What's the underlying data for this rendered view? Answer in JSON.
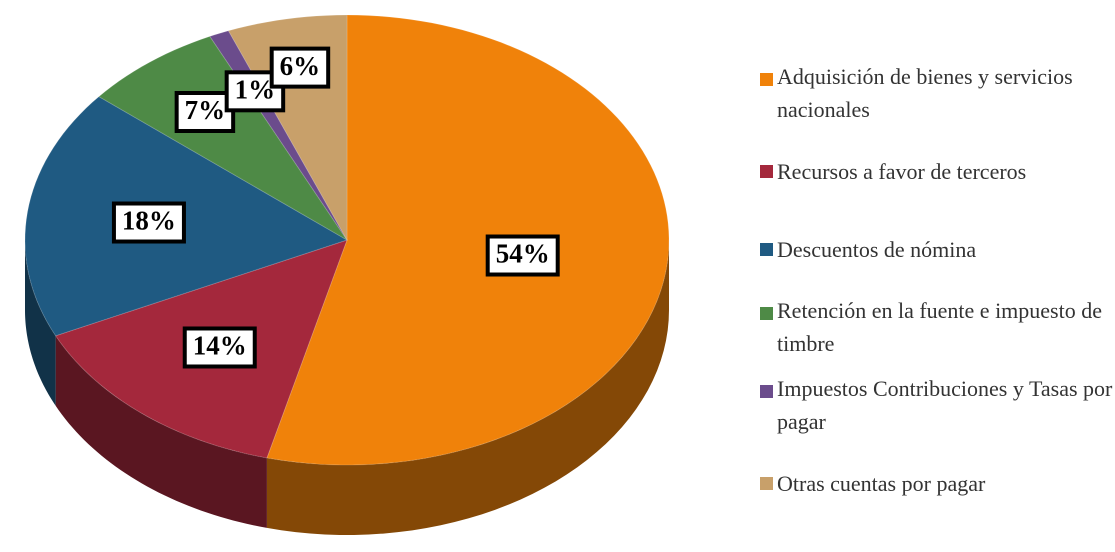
{
  "chart_data": {
    "type": "pie",
    "categories": [
      "Adquisición de bienes y servicios nacionales",
      "Recursos a favor de terceros",
      "Descuentos de nómina",
      "Retención en la fuente e impuesto de timbre",
      "Impuestos Contribuciones y Tasas por pagar",
      "Otras cuentas por pagar"
    ],
    "values": [
      54,
      14,
      18,
      7,
      1,
      6
    ],
    "value_labels": [
      "54%",
      "14%",
      "18%",
      "7%",
      "1%",
      "6%"
    ],
    "colors": [
      "#f0820a",
      "#a4283c",
      "#1f5a82",
      "#4e8a46",
      "#6b4c8c",
      "#c8a06a"
    ],
    "legend": "right"
  }
}
